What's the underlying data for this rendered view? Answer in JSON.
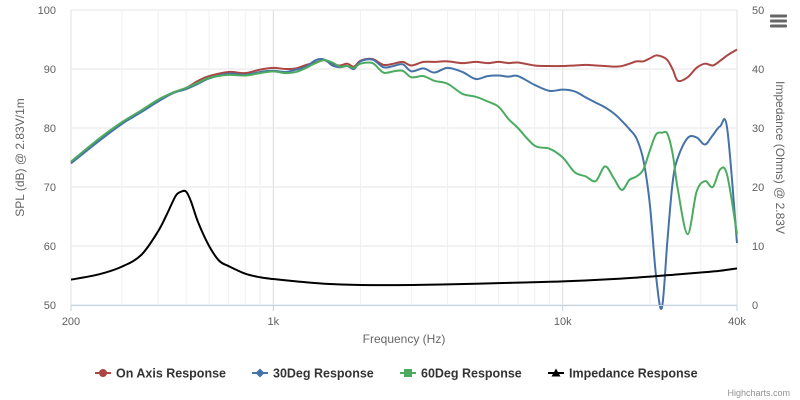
{
  "chart_data": {
    "type": "line",
    "x_axis": {
      "title": "Frequency (Hz)",
      "scale": "log",
      "range": [
        200,
        40000
      ],
      "ticks": [
        {
          "value": 200,
          "label": "200"
        },
        {
          "value": 1000,
          "label": "1k"
        },
        {
          "value": 10000,
          "label": "10k"
        },
        {
          "value": 40000,
          "label": "40k"
        }
      ]
    },
    "y_axis_left": {
      "title": "SPL (dB) @ 2.83V/1m",
      "range": [
        50,
        100
      ],
      "ticks": [
        50,
        60,
        70,
        80,
        90,
        100
      ]
    },
    "y_axis_right": {
      "title": "Impedance (Ohms) @ 2.83V",
      "range": [
        0,
        50
      ],
      "ticks": [
        0,
        10,
        20,
        30,
        40,
        50
      ]
    },
    "grid": true,
    "legend_position": "bottom-center",
    "series": [
      {
        "name": "On Axis Response",
        "color": "#aa4643",
        "marker": "circle",
        "axis": "left",
        "x": [
          200,
          250,
          300,
          350,
          400,
          450,
          500,
          550,
          600,
          700,
          800,
          900,
          1000,
          1100,
          1200,
          1300,
          1400,
          1500,
          1600,
          1700,
          1800,
          1900,
          2000,
          2200,
          2400,
          2600,
          2800,
          3000,
          3300,
          3600,
          4000,
          4500,
          5000,
          5500,
          6000,
          6500,
          7000,
          8000,
          9000,
          10000,
          11000,
          12000,
          13000,
          14000,
          15000,
          16000,
          17000,
          18000,
          19000,
          20000,
          21000,
          22000,
          23000,
          24000,
          25000,
          27000,
          29000,
          31000,
          33000,
          35000,
          37000,
          40000
        ],
        "values": [
          74.2,
          78.0,
          80.8,
          82.8,
          84.5,
          86.0,
          86.8,
          88.0,
          88.8,
          89.5,
          89.3,
          89.9,
          90.2,
          90.0,
          90.1,
          90.7,
          91.1,
          91.5,
          90.8,
          90.6,
          90.9,
          90.4,
          91.4,
          91.7,
          90.7,
          90.9,
          91.2,
          90.6,
          91.2,
          91.2,
          91.3,
          91.0,
          91.2,
          91.0,
          91.2,
          91.0,
          91.1,
          90.6,
          90.5,
          90.5,
          90.6,
          90.7,
          90.6,
          90.5,
          90.4,
          90.5,
          90.9,
          91.3,
          91.3,
          91.8,
          92.3,
          92.1,
          91.5,
          89.9,
          88.0,
          88.6,
          90.2,
          90.9,
          90.6,
          91.4,
          92.3,
          93.3
        ]
      },
      {
        "name": "30Deg Response",
        "color": "#4572a7",
        "marker": "diamond",
        "axis": "left",
        "x": [
          200,
          250,
          300,
          350,
          400,
          450,
          500,
          550,
          600,
          700,
          800,
          900,
          1000,
          1100,
          1200,
          1300,
          1400,
          1500,
          1600,
          1700,
          1800,
          1900,
          2000,
          2200,
          2400,
          2600,
          2800,
          3000,
          3300,
          3600,
          4000,
          4500,
          5000,
          5500,
          6000,
          6500,
          7000,
          8000,
          9000,
          10000,
          11000,
          12000,
          13000,
          14000,
          15000,
          16000,
          17000,
          18000,
          19000,
          20000,
          21000,
          22000,
          23000,
          24000,
          25000,
          27000,
          29000,
          31000,
          33000,
          35000,
          37000,
          40000
        ],
        "values": [
          74.0,
          77.8,
          80.7,
          82.7,
          84.5,
          85.9,
          86.6,
          87.5,
          88.4,
          89.2,
          89.0,
          89.5,
          89.7,
          89.5,
          89.9,
          90.4,
          91.5,
          91.6,
          90.6,
          90.3,
          90.5,
          90.0,
          91.3,
          91.6,
          90.3,
          90.5,
          90.8,
          89.6,
          90.1,
          89.4,
          90.2,
          89.5,
          88.3,
          88.8,
          88.9,
          88.7,
          88.8,
          87.3,
          86.3,
          86.5,
          86.2,
          85.2,
          84.3,
          83.5,
          82.5,
          81.2,
          79.8,
          78.2,
          74.5,
          67.0,
          55.0,
          49.5,
          61.0,
          71.0,
          75.0,
          78.3,
          78.4,
          77.2,
          78.8,
          80.3,
          79.9,
          60.5
        ]
      },
      {
        "name": "60Deg Response",
        "color": "#4cab61",
        "marker": "square",
        "axis": "left",
        "x": [
          200,
          250,
          300,
          350,
          400,
          450,
          500,
          550,
          600,
          700,
          800,
          900,
          1000,
          1100,
          1200,
          1300,
          1400,
          1500,
          1600,
          1700,
          1800,
          1900,
          2000,
          2200,
          2400,
          2600,
          2800,
          3000,
          3300,
          3600,
          4000,
          4500,
          5000,
          5500,
          6000,
          6500,
          7000,
          8000,
          9000,
          10000,
          11000,
          12000,
          13000,
          14000,
          15000,
          16000,
          17000,
          18000,
          19000,
          20000,
          21000,
          22000,
          23000,
          24000,
          25000,
          27000,
          29000,
          31000,
          33000,
          35000,
          37000,
          40000
        ],
        "values": [
          74.3,
          78.2,
          81.0,
          83.0,
          84.8,
          86.0,
          86.8,
          87.7,
          88.5,
          89.0,
          88.9,
          89.3,
          89.6,
          89.3,
          89.5,
          90.2,
          91.0,
          91.5,
          91.1,
          90.4,
          90.5,
          90.2,
          90.9,
          91.0,
          89.4,
          89.6,
          89.7,
          88.6,
          88.8,
          88.0,
          87.5,
          85.8,
          85.3,
          84.5,
          83.6,
          81.5,
          80.0,
          77.0,
          76.5,
          75.0,
          72.5,
          71.8,
          71.0,
          73.5,
          71.5,
          69.5,
          71.2,
          71.8,
          73.0,
          76.2,
          78.9,
          79.2,
          79.0,
          75.5,
          69.5,
          62.0,
          69.2,
          71.0,
          70.0,
          73.0,
          72.0,
          62.0
        ]
      },
      {
        "name": "Impedance Response",
        "color": "#000000",
        "marker": "triangle",
        "axis": "right",
        "x": [
          200,
          250,
          300,
          350,
          400,
          430,
          460,
          480,
          500,
          520,
          550,
          600,
          650,
          700,
          800,
          900,
          1000,
          1200,
          1500,
          2000,
          3000,
          5000,
          7000,
          10000,
          15000,
          20000,
          25000,
          30000,
          35000,
          40000
        ],
        "values": [
          4.3,
          5.2,
          6.5,
          8.5,
          12.5,
          15.5,
          18.5,
          19.2,
          19.2,
          17.5,
          14.0,
          10.0,
          7.5,
          6.6,
          5.3,
          4.7,
          4.4,
          4.0,
          3.6,
          3.4,
          3.4,
          3.6,
          3.8,
          4.0,
          4.4,
          4.8,
          5.2,
          5.5,
          5.8,
          6.2
        ]
      }
    ]
  },
  "menu": {
    "icon": "hamburger-menu-icon"
  },
  "credits": "Highcharts.com"
}
